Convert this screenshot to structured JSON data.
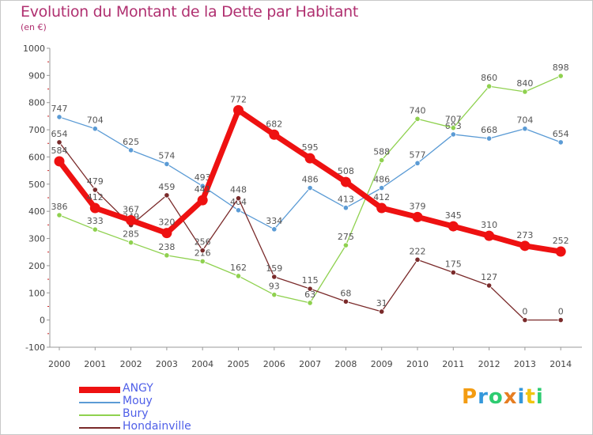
{
  "chart_data": {
    "type": "line",
    "title": "Evolution du Montant de la Dette par Habitant",
    "subtitle": "(en €)",
    "categories": [
      "2000",
      "2001",
      "2002",
      "2003",
      "2004",
      "2005",
      "2006",
      "2007",
      "2008",
      "2009",
      "2010",
      "2011",
      "2012",
      "2013",
      "2014"
    ],
    "ylim": [
      -100,
      1000
    ],
    "yticks": [
      -100,
      0,
      100,
      200,
      300,
      400,
      500,
      600,
      700,
      800,
      900,
      1000
    ],
    "grid": false,
    "legend_position": "bottom-left",
    "series": [
      {
        "name": "ANGY",
        "color": "#ee1111",
        "values": [
          584,
          412,
          367,
          320,
          441,
          772,
          682,
          595,
          508,
          412,
          379,
          345,
          310,
          273,
          252
        ]
      },
      {
        "name": "Mouy",
        "color": "#5b9bd5",
        "values": [
          747,
          704,
          625,
          574,
          493,
          404,
          334,
          486,
          413,
          486,
          577,
          683,
          668,
          704,
          654
        ]
      },
      {
        "name": "Bury",
        "color": "#8fd14f",
        "values": [
          386,
          333,
          285,
          238,
          216,
          162,
          93,
          63,
          275,
          588,
          740,
          707,
          860,
          840,
          898
        ]
      },
      {
        "name": "Hondainville",
        "color": "#7a2a2a",
        "values": [
          654,
          479,
          349,
          459,
          256,
          448,
          159,
          115,
          68,
          31,
          222,
          175,
          127,
          0,
          0
        ]
      }
    ]
  },
  "logo": {
    "letters": [
      "P",
      "r",
      "o",
      "x",
      "i",
      "t",
      "i"
    ],
    "colors": [
      "#f39c12",
      "#3498db",
      "#2ecc71",
      "#e67e22",
      "#3498db",
      "#f1c40f",
      "#2ecc71"
    ]
  }
}
